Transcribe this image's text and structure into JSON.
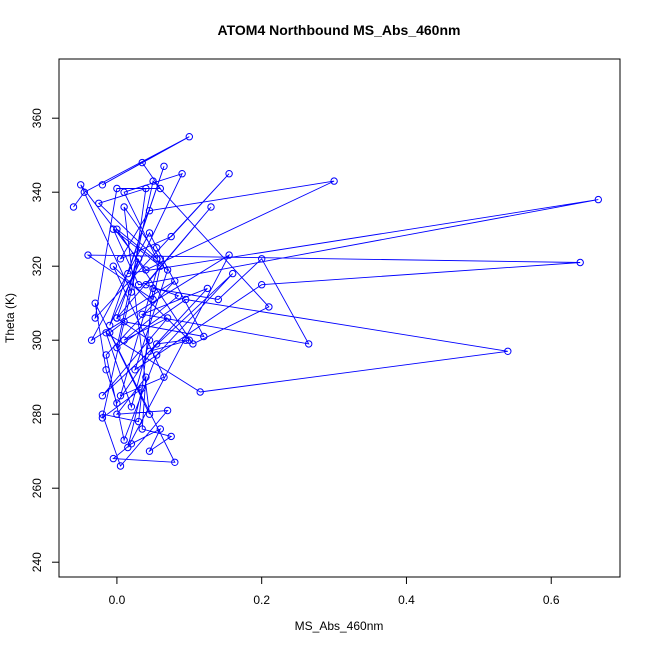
{
  "chart_data": {
    "type": "line",
    "title": "ATOM4 Northbound MS_Abs_460nm",
    "xlabel": "MS_Abs_460nm",
    "ylabel": "Theta (K)",
    "xlim": [
      -0.08,
      0.695
    ],
    "ylim": [
      236,
      376
    ],
    "xticks": [
      0.0,
      0.2,
      0.4,
      0.6
    ],
    "xtick_labels": [
      "0.0",
      "0.2",
      "0.4",
      "0.6"
    ],
    "yticks": [
      240,
      260,
      280,
      300,
      320,
      340,
      360
    ],
    "ytick_labels": [
      "240",
      "260",
      "280",
      "300",
      "320",
      "340",
      "360"
    ],
    "grid": false,
    "color": "#0000ff",
    "series": [
      {
        "marker": "open-circle",
        "x": [
          -0.06,
          -0.045,
          0.1,
          -0.02,
          0.035,
          0.06,
          0.0,
          -0.03,
          0.155,
          0.075,
          0.005,
          0.045,
          0.3,
          0.04,
          -0.05,
          0.02,
          0.04,
          -0.025,
          0.055,
          0.01,
          0.09,
          -0.01,
          0.065,
          0.015,
          0.665,
          0.03,
          -0.005,
          0.06,
          0.05,
          -0.04,
          0.64,
          0.2,
          0.025,
          0.07,
          0.0,
          0.105,
          0.21,
          0.05,
          0.0,
          0.095,
          0.54,
          0.115,
          -0.015,
          0.02,
          0.045,
          0.0,
          0.13,
          0.04,
          0.085,
          0.01,
          0.07,
          -0.02,
          0.16,
          0.055,
          0.01,
          -0.015,
          0.08,
          0.0,
          0.03,
          -0.02,
          0.035,
          0.015,
          0.155,
          -0.035,
          0.045,
          0.055,
          0.12,
          0.01,
          -0.01,
          0.045,
          0.01,
          0.06,
          0.005,
          0.065,
          -0.005,
          0.1,
          0.045,
          0.125,
          0.035,
          0.265,
          0.2,
          0.14,
          0.05,
          0.03,
          -0.02,
          0.005,
          0.07,
          0.0,
          0.04,
          0.035,
          0.075,
          0.045,
          0.06,
          0.02,
          -0.005,
          0.08,
          -0.03,
          -0.015,
          0.0,
          0.055,
          0.095
        ],
        "y": [
          336,
          340,
          355,
          342,
          348,
          341,
          341,
          306,
          345,
          328,
          322,
          335,
          343,
          319,
          342,
          313,
          341,
          337,
          322,
          340,
          345,
          304,
          347,
          318,
          338,
          315,
          330,
          320,
          311,
          323,
          321,
          315,
          292,
          319,
          330,
          299,
          309,
          343,
          298,
          311,
          297,
          286,
          302,
          282,
          300,
          306,
          336,
          315,
          312,
          300,
          306,
          285,
          318,
          296,
          273,
          296,
          316,
          306,
          322,
          279,
          287,
          271,
          323,
          300,
          329,
          325,
          301,
          305,
          302,
          280,
          336,
          322,
          285,
          290,
          320,
          300,
          297,
          314,
          307,
          299,
          322,
          311,
          314,
          278,
          280,
          266,
          281,
          280,
          290,
          276,
          274,
          270,
          276,
          272,
          268,
          267,
          310,
          292,
          283,
          299,
          300
        ]
      }
    ]
  }
}
